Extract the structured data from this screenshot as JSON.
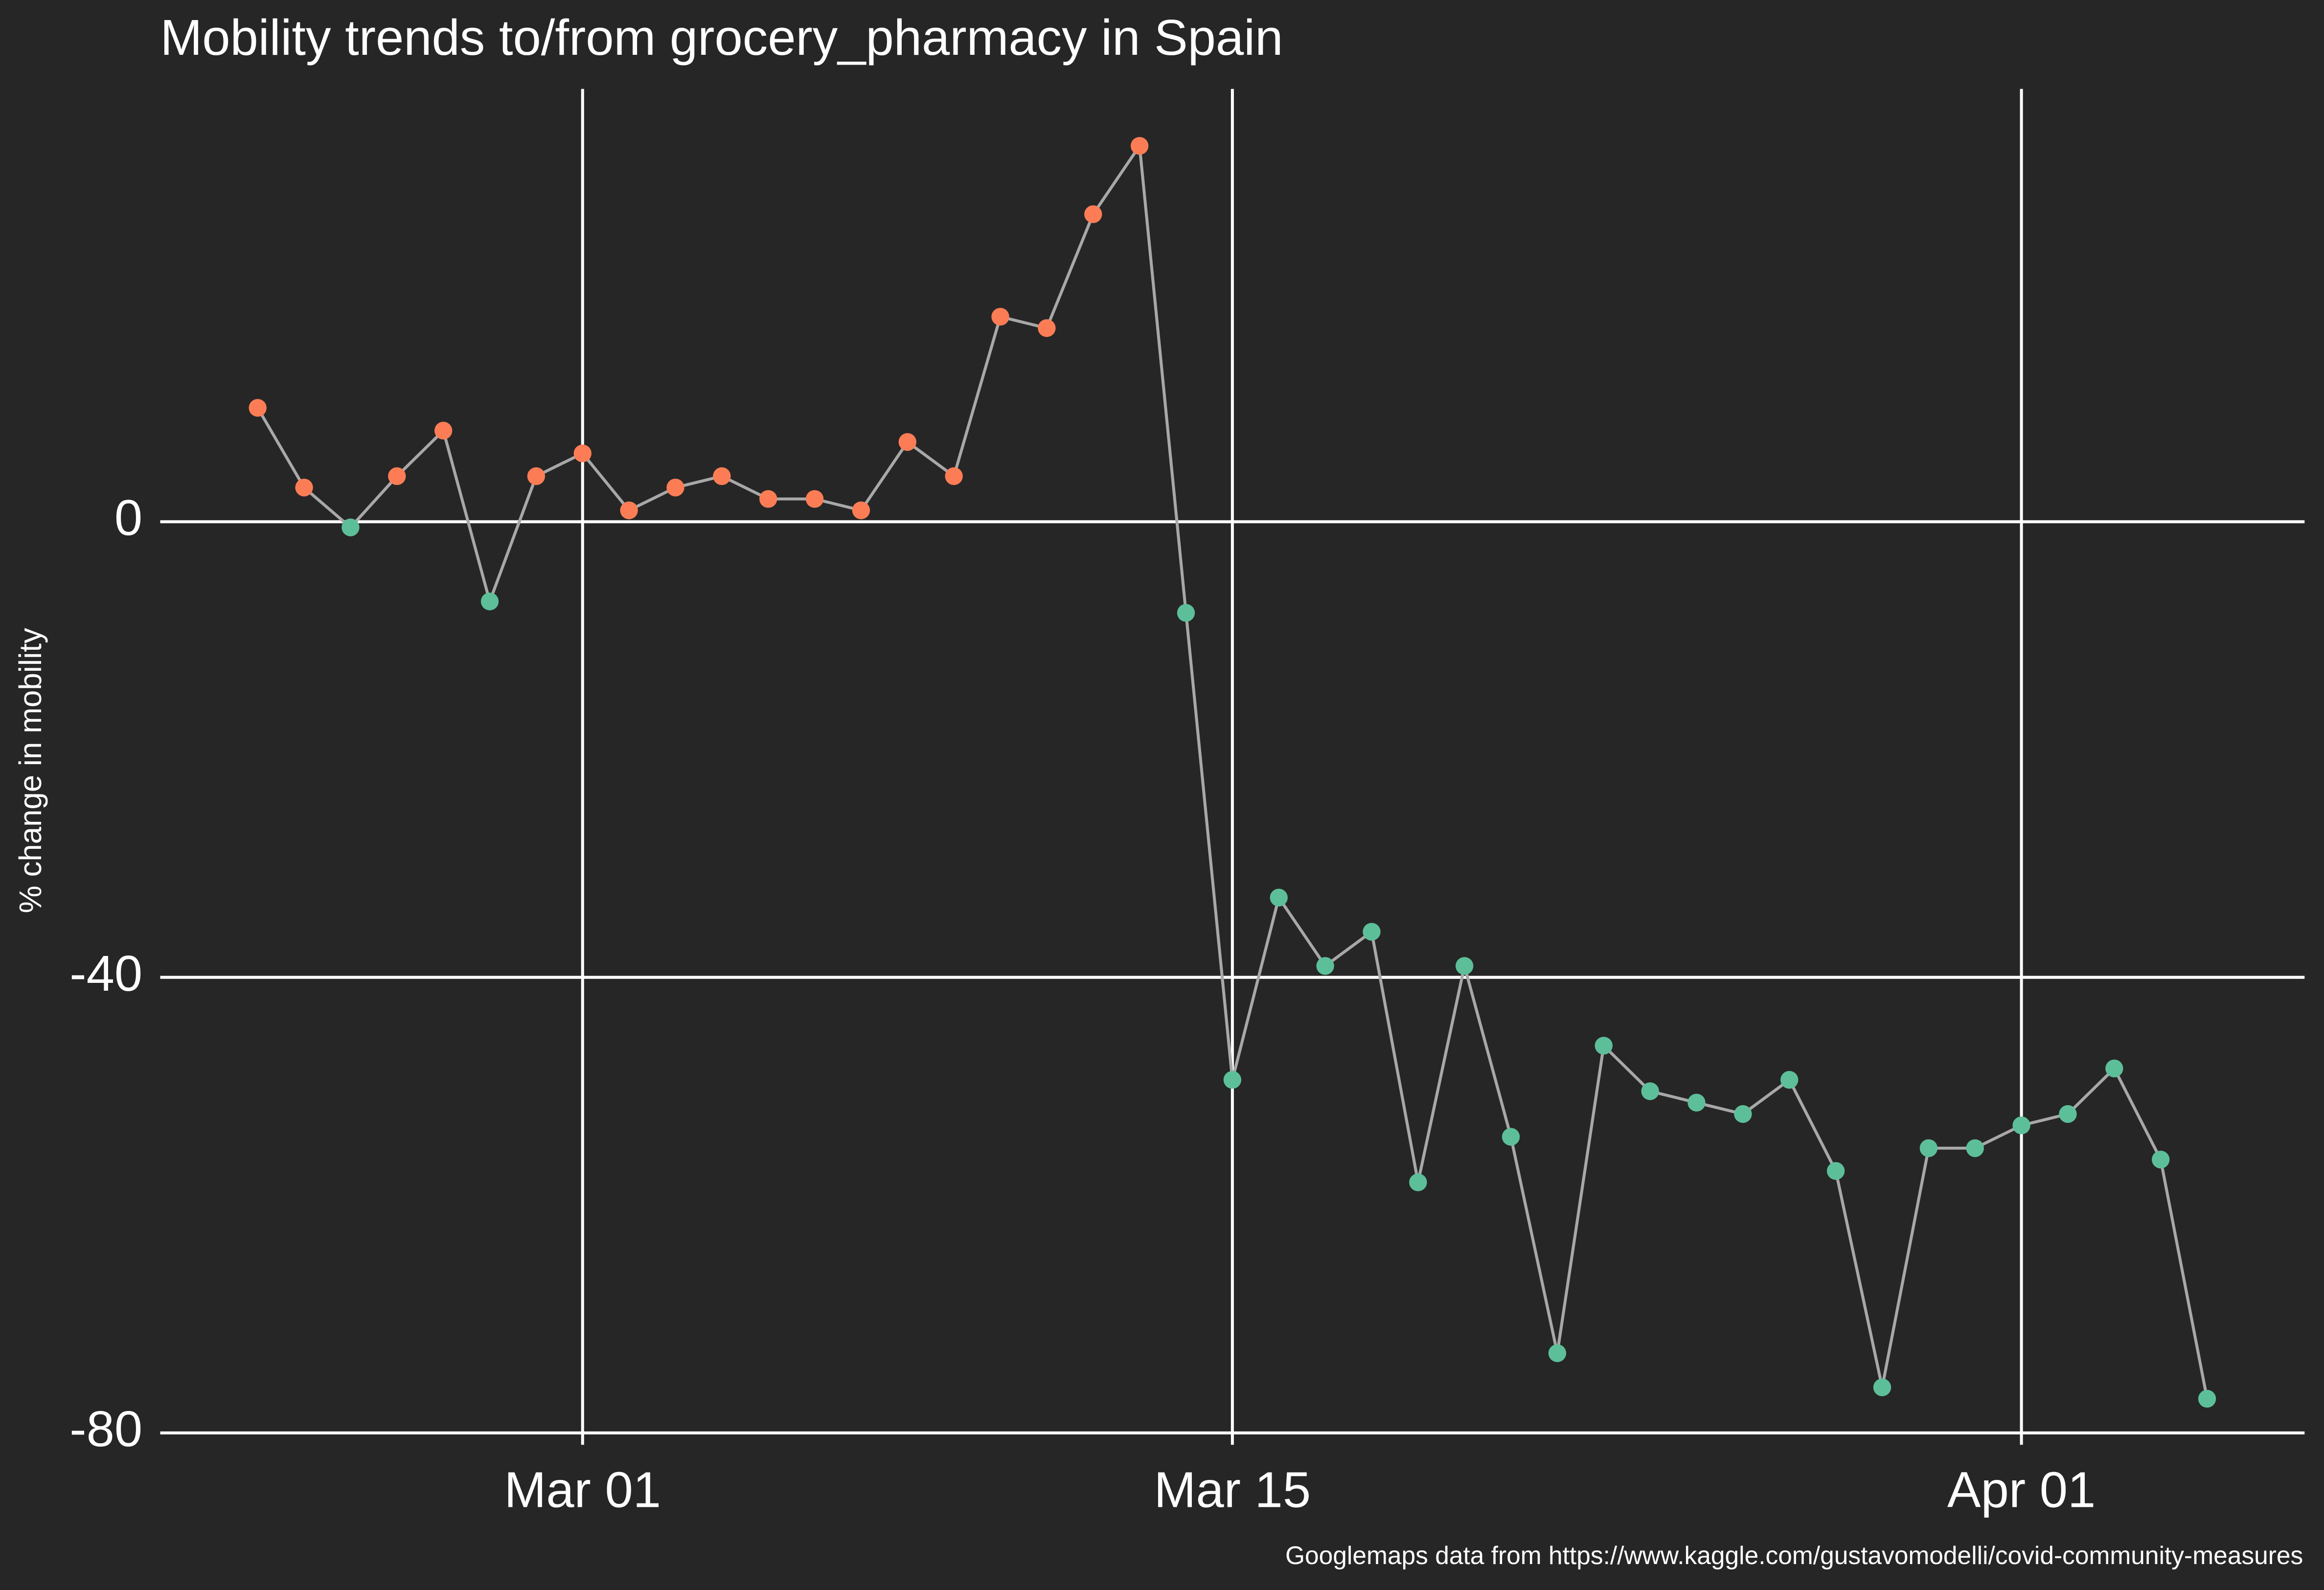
{
  "chart_data": {
    "type": "line",
    "title": "Mobility trends to/from grocery_pharmacy in Spain",
    "y_label": "% change in mobility",
    "caption": "Googlemaps data from https://www.kaggle.com/gustavomodelli/covid-community-measures",
    "x": [
      "Feb 23",
      "Feb 24",
      "Feb 25",
      "Feb 26",
      "Feb 27",
      "Feb 28",
      "Feb 29",
      "Mar 01",
      "Mar 02",
      "Mar 03",
      "Mar 04",
      "Mar 05",
      "Mar 06",
      "Mar 07",
      "Mar 08",
      "Mar 09",
      "Mar 10",
      "Mar 11",
      "Mar 12",
      "Mar 13",
      "Mar 14",
      "Mar 15",
      "Mar 16",
      "Mar 17",
      "Mar 18",
      "Mar 19",
      "Mar 20",
      "Mar 21",
      "Mar 22",
      "Mar 23",
      "Mar 24",
      "Mar 25",
      "Mar 26",
      "Mar 27",
      "Mar 28",
      "Mar 29",
      "Mar 30",
      "Mar 31",
      "Apr 01",
      "Apr 02",
      "Apr 03",
      "Apr 04",
      "Apr 05"
    ],
    "values": [
      10,
      3,
      -0.5,
      4,
      8,
      -7,
      4,
      6,
      1,
      3,
      4,
      2,
      2,
      1,
      7,
      4,
      18,
      17,
      27,
      33,
      -8,
      -49,
      -33,
      -39,
      -36,
      -58,
      -39,
      -54,
      -73,
      -46,
      -50,
      -51,
      -52,
      -49,
      -57,
      -76,
      -55,
      -55,
      -53,
      -52,
      -48,
      -56,
      -77
    ],
    "xticks": [
      "Mar 01",
      "Mar 15",
      "Apr 01"
    ],
    "ylim": [
      -80,
      38
    ],
    "yticks": [
      -80,
      -40,
      0
    ],
    "grid": true,
    "line_color": "#a8a8a8",
    "color_above_zero": "#fc7d55",
    "color_below_zero": "#5dbf9a"
  }
}
